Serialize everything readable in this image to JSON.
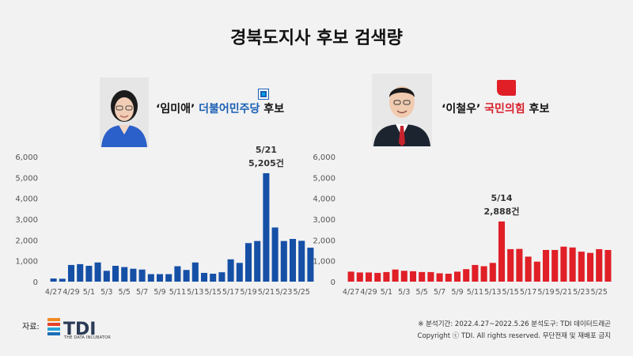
{
  "page": {
    "title": "경북도지사 후보 검색량",
    "source_label": "자료:",
    "brand": "TDI",
    "brand_sub": "THE DATA INCUBATOR",
    "footer_line1": "※ 분석기간: 2022.4.27~2022.5.26  분석도구: TDI 데이터드래곤",
    "footer_line2": "Copyright ⓒ TDI. All rights reserved. 무단전재 및 재배포 금지"
  },
  "candidates": {
    "left": {
      "prefix": "‘임미애’ ",
      "party": "더불어민주당",
      "suffix": " 후보"
    },
    "right": {
      "prefix": "‘이철우’ ",
      "party": "국민의힘",
      "suffix": " 후보"
    }
  },
  "colors": {
    "left_bar": "#1650a6",
    "right_bar": "#e01f27",
    "dem_party": "#1a5fb4",
    "ppp_party": "#d81e2a"
  },
  "chart_data": [
    {
      "type": "bar",
      "categories": [
        "4/27",
        "4/28",
        "4/29",
        "4/30",
        "5/1",
        "5/2",
        "5/3",
        "5/4",
        "5/5",
        "5/6",
        "5/7",
        "5/8",
        "5/9",
        "5/10",
        "5/11",
        "5/12",
        "5/13",
        "5/14",
        "5/15",
        "5/16",
        "5/17",
        "5/18",
        "5/19",
        "5/20",
        "5/21",
        "5/22",
        "5/23",
        "5/24",
        "5/25",
        "5/26"
      ],
      "tick_labels": [
        "4/27",
        "",
        "4/29",
        "",
        "5/1",
        "",
        "5/3",
        "",
        "5/5",
        "",
        "5/7",
        "",
        "5/9",
        "",
        "5/11",
        "",
        "5/13",
        "",
        "5/15",
        "",
        "5/17",
        "",
        "5/19",
        "",
        "5/21",
        "",
        "5/23",
        "",
        "5/25",
        ""
      ],
      "values": [
        150,
        140,
        800,
        840,
        760,
        920,
        520,
        760,
        700,
        620,
        580,
        360,
        360,
        360,
        740,
        560,
        920,
        420,
        380,
        450,
        1070,
        900,
        1850,
        1950,
        5205,
        2600,
        1950,
        2050,
        1960,
        1630
      ],
      "ylim": [
        0,
        6000
      ],
      "yticks": [
        0,
        1000,
        2000,
        3000,
        4000,
        5000,
        6000
      ],
      "ytick_labels": [
        "0",
        "1,000",
        "2,000",
        "3,000",
        "4,000",
        "5,000",
        "6,000"
      ],
      "grid": false,
      "annotation": {
        "index": 24,
        "date": "5/21",
        "value_text": "5,205건"
      }
    },
    {
      "type": "bar",
      "categories": [
        "4/27",
        "4/28",
        "4/29",
        "4/30",
        "5/1",
        "5/2",
        "5/3",
        "5/4",
        "5/5",
        "5/6",
        "5/7",
        "5/8",
        "5/9",
        "5/10",
        "5/11",
        "5/12",
        "5/13",
        "5/14",
        "5/15",
        "5/16",
        "5/17",
        "5/18",
        "5/19",
        "5/20",
        "5/21",
        "5/22",
        "5/23",
        "5/24",
        "5/25",
        "5/26"
      ],
      "tick_labels": [
        "4/27",
        "",
        "4/29",
        "",
        "5/1",
        "",
        "5/3",
        "",
        "5/5",
        "",
        "5/7",
        "",
        "5/9",
        "",
        "5/11",
        "",
        "5/13",
        "",
        "5/15",
        "",
        "5/17",
        "",
        "5/19",
        "",
        "5/21",
        "",
        "5/23",
        "",
        "5/25",
        ""
      ],
      "values": [
        480,
        440,
        440,
        420,
        460,
        580,
        520,
        500,
        460,
        460,
        400,
        380,
        480,
        600,
        800,
        740,
        900,
        2888,
        1560,
        1570,
        1200,
        960,
        1520,
        1520,
        1680,
        1640,
        1440,
        1380,
        1560,
        1520
      ],
      "ylim": [
        0,
        6000
      ],
      "yticks": [
        0,
        1000,
        2000,
        3000,
        4000,
        5000,
        6000
      ],
      "ytick_labels": [
        "0",
        "1,000",
        "2,000",
        "3,000",
        "4,000",
        "5,000",
        "6,000"
      ],
      "grid": false,
      "annotation": {
        "index": 17,
        "date": "5/14",
        "value_text": "2,888건"
      }
    }
  ]
}
